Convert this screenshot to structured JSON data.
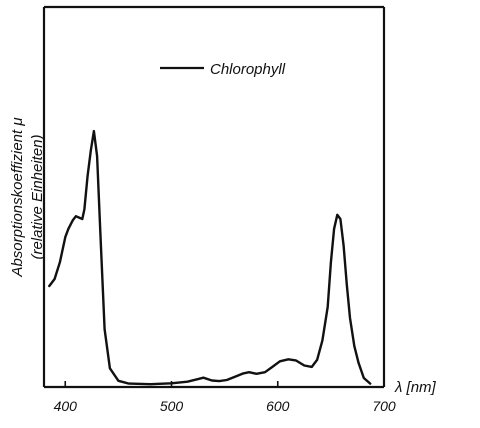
{
  "chart_data": {
    "type": "line",
    "xlabel": "λ [nm]",
    "ylabel_line1": "Absorptionskoeffizient μ",
    "ylabel_line2": "(relative Einheiten)",
    "xlim": [
      380,
      700
    ],
    "ylim": [
      0,
      100
    ],
    "x_ticks": [
      400,
      500,
      600,
      700
    ],
    "y_ticks": [],
    "grid": false,
    "legend_position": "top-center",
    "series": [
      {
        "name": "Chlorophyll",
        "color": "#111111",
        "points": [
          [
            385,
            35.5
          ],
          [
            390,
            38
          ],
          [
            395,
            44
          ],
          [
            400,
            53
          ],
          [
            403,
            56
          ],
          [
            407,
            59
          ],
          [
            410,
            60.5
          ],
          [
            413,
            60
          ],
          [
            416,
            59.5
          ],
          [
            418,
            63
          ],
          [
            421,
            75
          ],
          [
            424,
            84
          ],
          [
            427,
            91
          ],
          [
            430,
            82
          ],
          [
            433,
            55
          ],
          [
            437,
            20
          ],
          [
            442,
            6
          ],
          [
            450,
            1.5
          ],
          [
            460,
            0.5
          ],
          [
            480,
            0.3
          ],
          [
            500,
            0.6
          ],
          [
            515,
            1.2
          ],
          [
            525,
            2.1
          ],
          [
            530,
            2.6
          ],
          [
            538,
            1.6
          ],
          [
            545,
            1.4
          ],
          [
            552,
            1.8
          ],
          [
            560,
            3
          ],
          [
            567,
            4.1
          ],
          [
            573,
            4.6
          ],
          [
            580,
            4
          ],
          [
            588,
            4.6
          ],
          [
            595,
            6.5
          ],
          [
            602,
            8.5
          ],
          [
            610,
            9.2
          ],
          [
            617,
            8.8
          ],
          [
            625,
            7
          ],
          [
            632,
            6.5
          ],
          [
            637,
            9
          ],
          [
            642,
            16
          ],
          [
            647,
            28
          ],
          [
            650,
            44
          ],
          [
            653,
            56
          ],
          [
            656,
            61
          ],
          [
            659,
            59.5
          ],
          [
            662,
            50
          ],
          [
            665,
            36
          ],
          [
            668,
            24
          ],
          [
            672,
            14
          ],
          [
            676,
            8
          ],
          [
            681,
            2.5
          ],
          [
            687,
            0.5
          ]
        ]
      }
    ]
  }
}
